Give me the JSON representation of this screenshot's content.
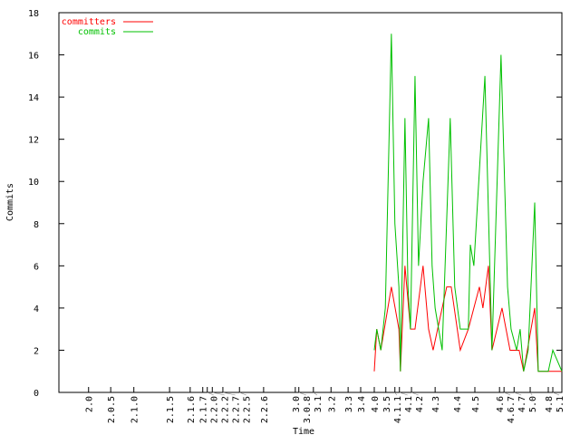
{
  "chart_data": {
    "type": "line",
    "title": "",
    "xlabel": "Time",
    "ylabel": "Commits",
    "ylim": [
      0,
      18
    ],
    "xlim": [
      0,
      100
    ],
    "yticks": [
      0,
      2,
      4,
      6,
      8,
      10,
      12,
      14,
      16,
      18
    ],
    "grid": false,
    "legend": "top-left",
    "xticks": [
      {
        "label": "2.0",
        "x": 5.9
      },
      {
        "label": "2.0.5",
        "x": 10.3
      },
      {
        "label": "2.1.0",
        "x": 14.9
      },
      {
        "label": "2.1.5",
        "x": 22.0
      },
      {
        "label": "2.1.6",
        "x": 26.1
      },
      {
        "label": "2.1.7",
        "x": 28.6
      },
      {
        "label": "2.2.0",
        "x": 29.5
      },
      {
        "label": "2.2.2",
        "x": 30.5
      },
      {
        "label": "2.2.7",
        "x": 32.6
      },
      {
        "label": "2.2.5",
        "x": 35.9
      },
      {
        "label": "2.2.6",
        "x": 40.7
      },
      {
        "label": "3.0",
        "x": 47.0
      },
      {
        "label": "3.0.8",
        "x": 47.7
      },
      {
        "label": "3.1",
        "x": 50.6
      },
      {
        "label": "3.2",
        "x": 54.1
      },
      {
        "label": "3.3",
        "x": 57.5
      },
      {
        "label": "3.4",
        "x": 60.0
      },
      {
        "label": "4.0",
        "x": 62.7
      },
      {
        "label": "3.5",
        "x": 65.0
      },
      {
        "label": "4.1.1",
        "x": 66.8
      },
      {
        "label": "4.1",
        "x": 67.7
      },
      {
        "label": "4.2",
        "x": 70.1
      },
      {
        "label": "4.3",
        "x": 74.8
      },
      {
        "label": "4.4",
        "x": 79.1
      },
      {
        "label": "4.5",
        "x": 82.7
      },
      {
        "label": "4.6",
        "x": 87.6
      },
      {
        "label": "4.6.7",
        "x": 88.5
      },
      {
        "label": "4.7",
        "x": 90.5
      },
      {
        "label": "5.0",
        "x": 93.7
      },
      {
        "label": "4.8",
        "x": 97.3
      },
      {
        "label": "5.1",
        "x": 98.2
      }
    ],
    "series": [
      {
        "name": "committers",
        "color": "#ff0000",
        "x": [
          62.7,
          63.2,
          64.0,
          66.1,
          67.6,
          67.9,
          68.8,
          69.9,
          70.8,
          72.4,
          73.5,
          74.4,
          75.3,
          77.1,
          78.0,
          79.8,
          81.4,
          83.6,
          84.3,
          85.4,
          86.1,
          88.1,
          89.7,
          91.5,
          92.4,
          94.6,
          95.3,
          100
        ],
        "values": [
          1,
          3,
          2,
          5,
          3,
          1,
          6,
          3,
          3,
          6,
          3,
          2,
          3,
          5,
          5,
          2,
          3,
          5,
          4,
          6,
          2,
          4,
          2,
          2,
          1,
          4,
          1,
          1
        ]
      },
      {
        "name": "commits",
        "color": "#00c000",
        "x": [
          62.7,
          63.2,
          64.0,
          64.9,
          66.1,
          66.8,
          67.6,
          67.9,
          68.8,
          69.4,
          69.9,
          70.8,
          71.5,
          72.4,
          73.5,
          74.2,
          74.8,
          76.2,
          77.8,
          78.7,
          79.8,
          81.4,
          81.8,
          82.5,
          84.7,
          86.1,
          87.9,
          89.2,
          89.9,
          91.0,
          91.7,
          92.4,
          93.3,
          94.6,
          95.3,
          97.3,
          98.2,
          100
        ],
        "values": [
          2,
          3,
          2,
          4,
          17,
          8,
          5,
          1,
          13,
          5,
          3,
          15,
          6,
          10,
          13,
          6,
          4,
          2,
          13,
          5,
          3,
          3,
          7,
          6,
          15,
          2,
          16,
          5,
          3,
          2,
          3,
          1,
          2,
          9,
          1,
          1,
          2,
          1
        ]
      }
    ]
  }
}
